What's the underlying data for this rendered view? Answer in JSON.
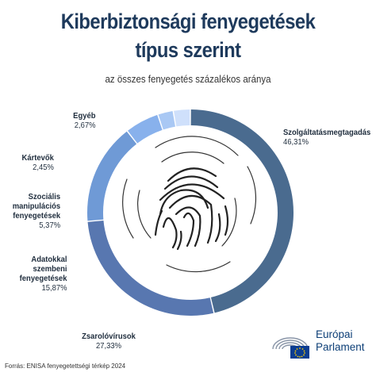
{
  "header": {
    "title_line1": "Kiberbiztonsági fenyegetések",
    "title_line2": "típus szerint",
    "subtitle": "az összes fenyegetés százalékos aránya"
  },
  "chart_data": {
    "type": "pie",
    "style": "donut",
    "slices": [
      {
        "name": "Szolgáltatásmegtagadás",
        "value": 46.31,
        "label": "46,31%",
        "color": "#4a6b8f"
      },
      {
        "name": "Zsarolóvírusok",
        "value": 27.33,
        "label": "27,33%",
        "color": "#5877b0"
      },
      {
        "name": "Adatokkal\nszembeni\nfenyegetések",
        "value": 15.87,
        "label": "15,87%",
        "color": "#6f9ad6"
      },
      {
        "name": "Szociális\nmanipulációs\nfenyegetések",
        "value": 5.37,
        "label": "5,37%",
        "color": "#88b1ec"
      },
      {
        "name": "Kártevők",
        "value": 2.45,
        "label": "2,45%",
        "color": "#a9c8f4"
      },
      {
        "name": "Egyéb",
        "value": 2.67,
        "label": "2,67%",
        "color": "#cfe0fb"
      }
    ]
  },
  "footer": {
    "source": "Forrás: ENISA fenyegetettségi térkép 2024",
    "logo_line1": "Európai",
    "logo_line2": "Parlament"
  },
  "icons": {
    "center": "fingerprint-icon",
    "logo": "european-parliament-logo-icon"
  }
}
